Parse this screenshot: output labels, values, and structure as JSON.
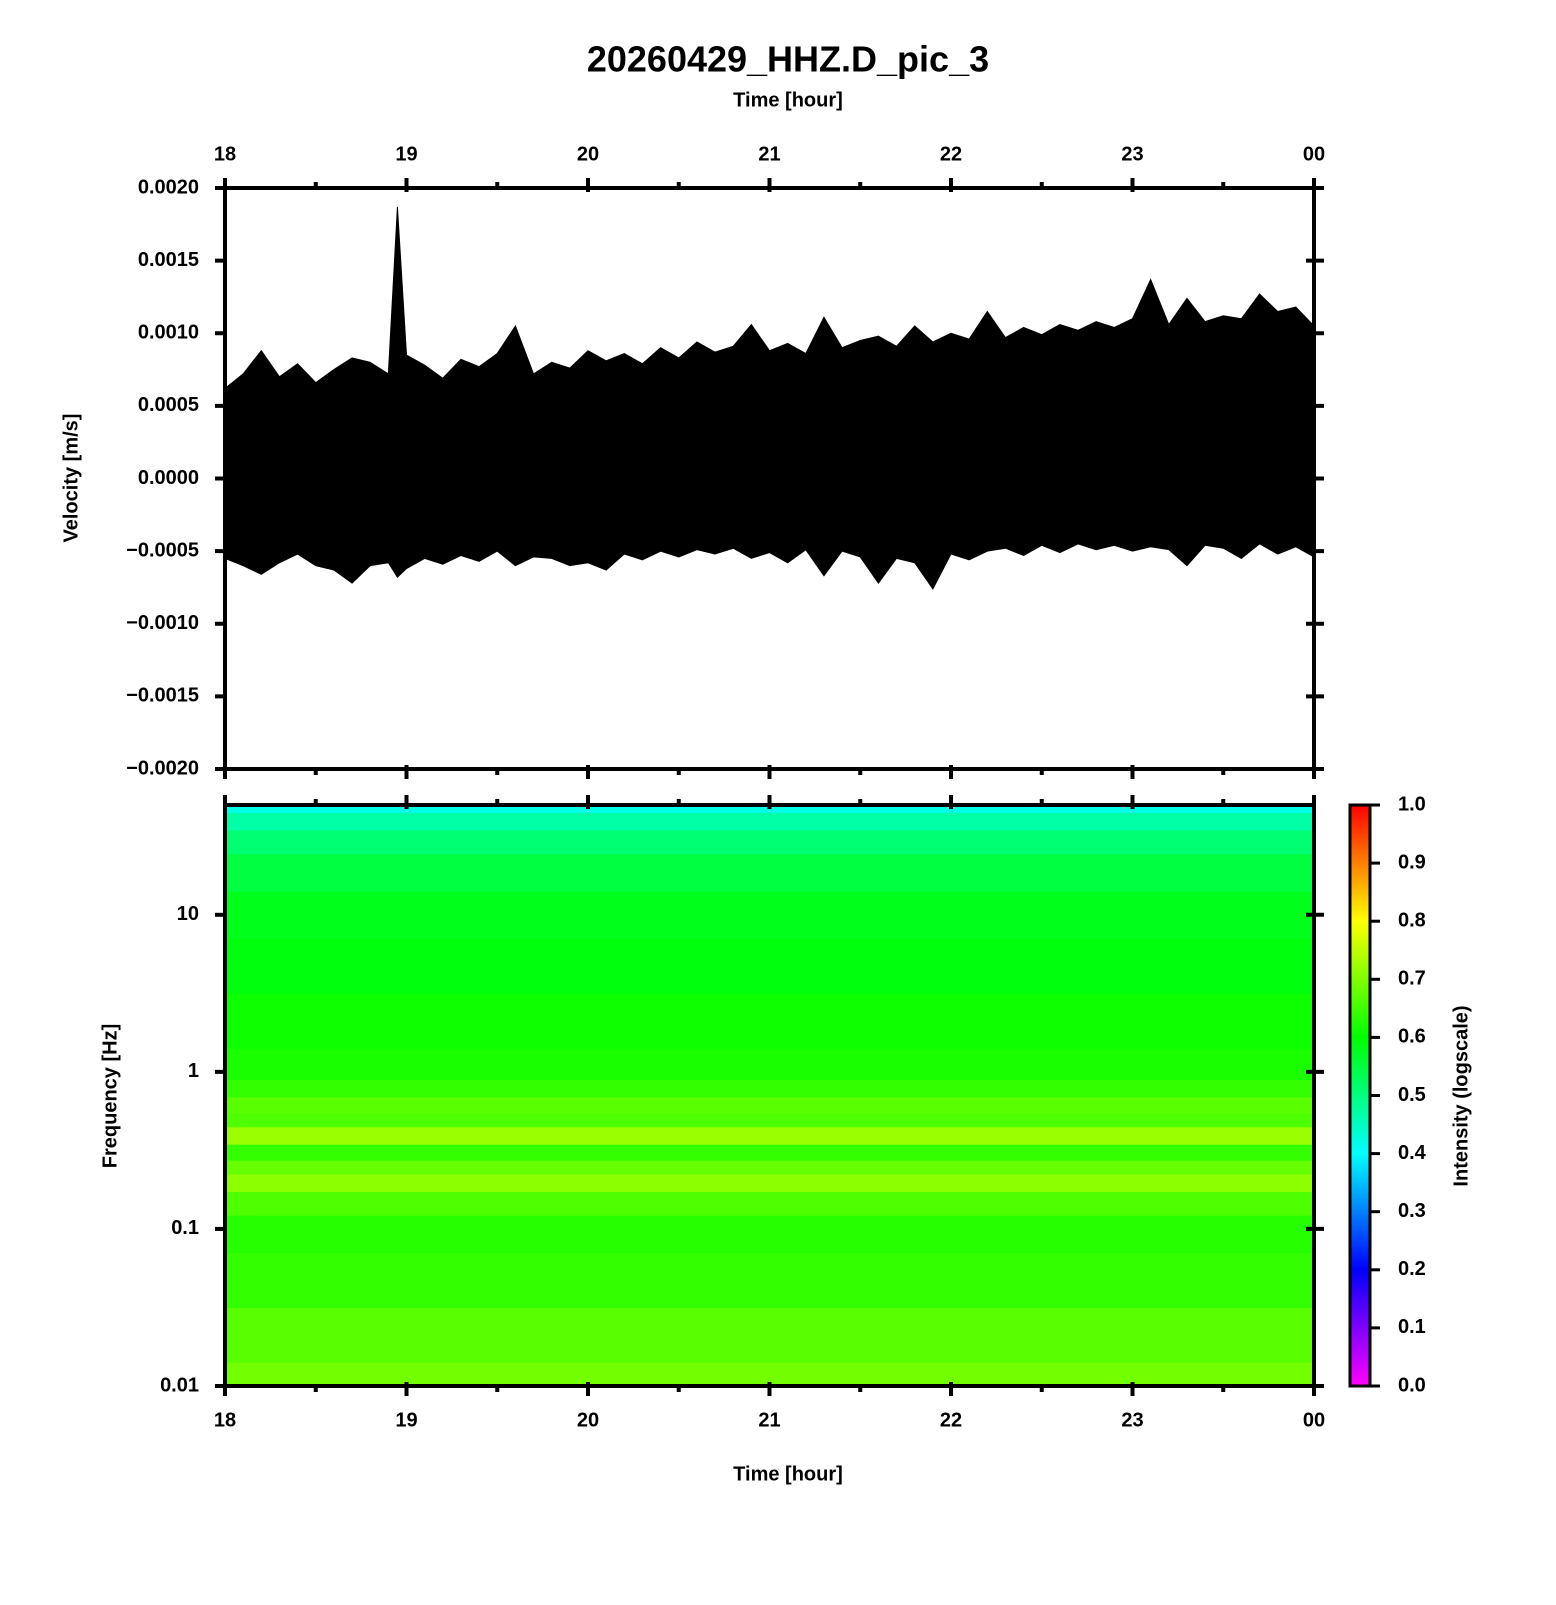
{
  "chart_data": [
    {
      "type": "range",
      "title": "20260429_HHZ.D_pic_3",
      "xlabel": "Time [hour]",
      "ylabel": "Velocity [m/s]",
      "xaxis_position": "top",
      "color": "#000000",
      "x": [
        18.0,
        18.1,
        18.2,
        18.3,
        18.4,
        18.5,
        18.6,
        18.7,
        18.8,
        18.9,
        18.95,
        19.0,
        19.1,
        19.2,
        19.3,
        19.4,
        19.5,
        19.6,
        19.7,
        19.8,
        19.9,
        20.0,
        20.1,
        20.2,
        20.3,
        20.4,
        20.5,
        20.6,
        20.7,
        20.8,
        20.9,
        21.0,
        21.1,
        21.2,
        21.3,
        21.4,
        21.5,
        21.6,
        21.7,
        21.8,
        21.9,
        22.0,
        22.1,
        22.2,
        22.3,
        22.4,
        22.5,
        22.6,
        22.7,
        22.8,
        22.9,
        23.0,
        23.1,
        23.2,
        23.3,
        23.4,
        23.5,
        23.6,
        23.7,
        23.8,
        23.9,
        24.0
      ],
      "high": [
        0.00062,
        0.00072,
        0.00088,
        0.0007,
        0.00079,
        0.00066,
        0.00075,
        0.00083,
        0.0008,
        0.00072,
        0.00187,
        0.00085,
        0.00078,
        0.00069,
        0.00082,
        0.00077,
        0.00086,
        0.00105,
        0.00072,
        0.0008,
        0.00076,
        0.00088,
        0.00081,
        0.00086,
        0.00079,
        0.0009,
        0.00083,
        0.00094,
        0.00087,
        0.00091,
        0.00106,
        0.00088,
        0.00093,
        0.00086,
        0.00111,
        0.0009,
        0.00095,
        0.00098,
        0.00091,
        0.00105,
        0.00094,
        0.001,
        0.00096,
        0.00115,
        0.00097,
        0.00104,
        0.00099,
        0.00106,
        0.00102,
        0.00108,
        0.00104,
        0.0011,
        0.00137,
        0.00106,
        0.00124,
        0.00108,
        0.00112,
        0.0011,
        0.00127,
        0.00115,
        0.00118,
        0.00105
      ],
      "low": [
        -0.00055,
        -0.0006,
        -0.00066,
        -0.00058,
        -0.00052,
        -0.0006,
        -0.00063,
        -0.00072,
        -0.0006,
        -0.00058,
        -0.00068,
        -0.00062,
        -0.00055,
        -0.00059,
        -0.00053,
        -0.00057,
        -0.0005,
        -0.0006,
        -0.00054,
        -0.00055,
        -0.0006,
        -0.00058,
        -0.00063,
        -0.00052,
        -0.00056,
        -0.0005,
        -0.00054,
        -0.00049,
        -0.00052,
        -0.00048,
        -0.00055,
        -0.00051,
        -0.00058,
        -0.00049,
        -0.00067,
        -0.0005,
        -0.00054,
        -0.00072,
        -0.00055,
        -0.00058,
        -0.00076,
        -0.00052,
        -0.00056,
        -0.0005,
        -0.00048,
        -0.00053,
        -0.00046,
        -0.00051,
        -0.00045,
        -0.00049,
        -0.00046,
        -0.0005,
        -0.00047,
        -0.00049,
        -0.0006,
        -0.00046,
        -0.00048,
        -0.00055,
        -0.00045,
        -0.00052,
        -0.00047,
        -0.00054
      ],
      "xlim": [
        18,
        24
      ],
      "xticks": [
        18,
        19,
        20,
        21,
        22,
        23,
        {
          "value": 24,
          "label": "00"
        }
      ],
      "xminorticks": [
        18.5,
        19.5,
        20.5,
        21.5,
        22.5,
        23.5
      ],
      "ylim": [
        -0.002,
        0.002
      ],
      "yticks": [
        {
          "value": -0.002,
          "label": "−0.0020"
        },
        {
          "value": -0.0015,
          "label": "−0.0015"
        },
        {
          "value": -0.001,
          "label": "−0.0010"
        },
        {
          "value": -0.0005,
          "label": "−0.0005"
        },
        {
          "value": 0,
          "label": "0.0000"
        },
        {
          "value": 0.0005,
          "label": "0.0005"
        },
        {
          "value": 0.001,
          "label": "0.0010"
        },
        {
          "value": 0.0015,
          "label": "0.0015"
        },
        {
          "value": 0.002,
          "label": "0.0020"
        }
      ]
    },
    {
      "type": "heatmap",
      "xlabel": "Time [hour]",
      "ylabel": "Frequency [Hz]",
      "xaxis_position": "bottom",
      "log_y": true,
      "xlim": [
        18,
        24
      ],
      "xticks": [
        18,
        19,
        20,
        21,
        22,
        23,
        {
          "value": 24,
          "label": "00"
        }
      ],
      "xminorticks": [
        18.5,
        19.5,
        20.5,
        21.5,
        22.5,
        23.5
      ],
      "ylim": [
        0.01,
        50
      ],
      "yticks": [
        0.01,
        0.1,
        1,
        10
      ],
      "frequencies": [
        0.01,
        0.02,
        0.05,
        0.1,
        0.15,
        0.2,
        0.25,
        0.3,
        0.4,
        0.5,
        0.6,
        0.8,
        1,
        2,
        5,
        10,
        20,
        30,
        40,
        50
      ],
      "intensity": [
        0.69,
        0.67,
        0.64,
        0.63,
        0.66,
        0.71,
        0.68,
        0.64,
        0.72,
        0.66,
        0.67,
        0.64,
        0.62,
        0.61,
        0.59,
        0.58,
        0.55,
        0.51,
        0.47,
        0.42
      ],
      "clim": [
        0,
        1
      ],
      "cticks": [
        {
          "value": 0,
          "label": "0.0"
        },
        0.1,
        0.2,
        0.3,
        0.4,
        0.5,
        0.6,
        0.7,
        0.8,
        0.9,
        {
          "value": 1,
          "label": "1.0"
        }
      ],
      "clabel": "Intensity (logscale)",
      "colormap": [
        "#ff00ff",
        "#0000ff",
        "#00ffff",
        "#00ff00",
        "#ffff00",
        "#ff0000"
      ]
    }
  ]
}
